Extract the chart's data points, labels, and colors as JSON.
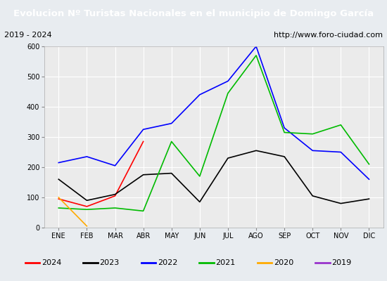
{
  "title": "Evolucion Nº Turistas Nacionales en el municipio de Domingo García",
  "subtitle_left": "2019 - 2024",
  "subtitle_right": "http://www.foro-ciudad.com",
  "title_bg_color": "#5b7fa6",
  "title_text_color": "#ffffff",
  "x_labels": [
    "ENE",
    "FEB",
    "MAR",
    "ABR",
    "MAY",
    "JUN",
    "JUL",
    "AGO",
    "SEP",
    "OCT",
    "NOV",
    "DIC"
  ],
  "ylim": [
    0,
    600
  ],
  "yticks": [
    0,
    100,
    200,
    300,
    400,
    500,
    600
  ],
  "series": {
    "2024": {
      "color": "#ff0000",
      "data": [
        95,
        70,
        105,
        285,
        null,
        null,
        null,
        null,
        null,
        null,
        null,
        null
      ]
    },
    "2023": {
      "color": "#000000",
      "data": [
        160,
        90,
        110,
        175,
        180,
        85,
        230,
        255,
        235,
        105,
        80,
        95
      ]
    },
    "2022": {
      "color": "#0000ff",
      "data": [
        215,
        235,
        205,
        325,
        345,
        440,
        485,
        600,
        330,
        255,
        250,
        160
      ]
    },
    "2021": {
      "color": "#00bb00",
      "data": [
        65,
        60,
        65,
        55,
        285,
        170,
        445,
        570,
        315,
        310,
        340,
        210
      ]
    },
    "2020": {
      "color": "#ffaa00",
      "data": [
        100,
        5,
        null,
        null,
        null,
        null,
        null,
        null,
        null,
        null,
        null,
        null
      ]
    },
    "2019": {
      "color": "#9933cc",
      "data": [
        null,
        null,
        null,
        null,
        null,
        null,
        null,
        null,
        null,
        null,
        null,
        null
      ]
    }
  },
  "legend_order": [
    "2024",
    "2023",
    "2022",
    "2021",
    "2020",
    "2019"
  ],
  "outer_bg_color": "#e8ecf0",
  "plot_bg_color": "#ebebeb",
  "grid_color": "#ffffff",
  "subtitle_bg": "#f0f0f0"
}
